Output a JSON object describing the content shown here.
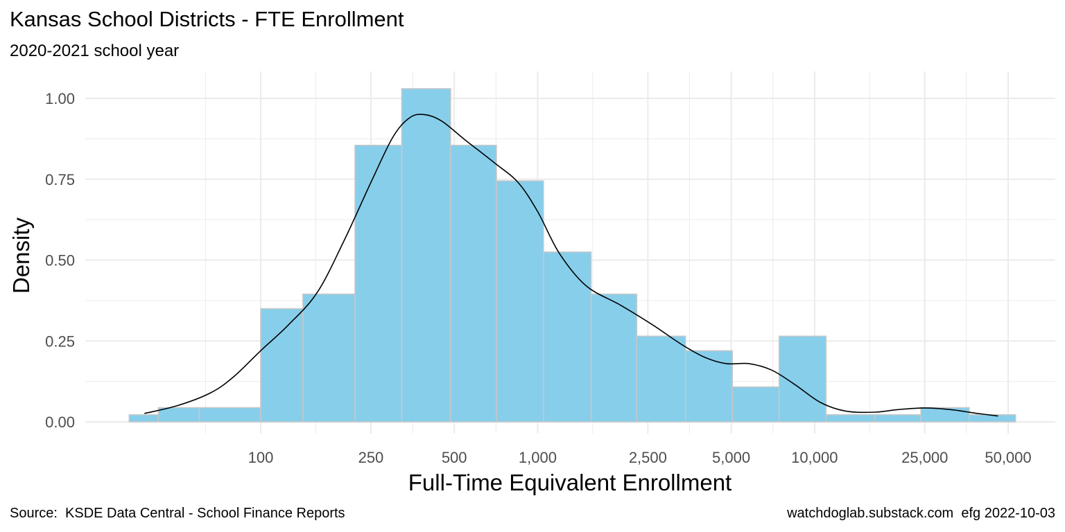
{
  "chart_data": {
    "type": "bar",
    "title": "Kansas School Districts - FTE Enrollment",
    "subtitle": "2020-2021 school year",
    "xlabel": "Full-Time Equivalent Enrollment",
    "ylabel": "Density",
    "x_scale": "log10",
    "xlim": [
      22,
      58000
    ],
    "ylim": [
      0,
      1.06
    ],
    "grid": true,
    "x_ticks": [
      {
        "value": 100,
        "label": "100"
      },
      {
        "value": 250,
        "label": "250"
      },
      {
        "value": 500,
        "label": "500"
      },
      {
        "value": 1000,
        "label": "1,000"
      },
      {
        "value": 2500,
        "label": "2,500"
      },
      {
        "value": 5000,
        "label": "5,000"
      },
      {
        "value": 10000,
        "label": "10,000"
      },
      {
        "value": 25000,
        "label": "25,000"
      },
      {
        "value": 50000,
        "label": "50,000"
      }
    ],
    "y_ticks": [
      {
        "value": 0,
        "label": "0.00"
      },
      {
        "value": 0.25,
        "label": "0.25"
      },
      {
        "value": 0.5,
        "label": "0.50"
      },
      {
        "value": 0.75,
        "label": "0.75"
      },
      {
        "value": 1.0,
        "label": "1.00"
      }
    ],
    "histogram_bins": [
      {
        "x0": 33.5,
        "x1": 42.7,
        "density": 0.022
      },
      {
        "x0": 42.7,
        "x1": 60.0,
        "density": 0.044
      },
      {
        "x0": 60.0,
        "x1": 100,
        "density": 0.044
      },
      {
        "x0": 100,
        "x1": 142,
        "density": 0.35
      },
      {
        "x0": 142,
        "x1": 219,
        "density": 0.395
      },
      {
        "x0": 219,
        "x1": 323,
        "density": 0.855
      },
      {
        "x0": 323,
        "x1": 485,
        "density": 1.03
      },
      {
        "x0": 485,
        "x1": 710,
        "density": 0.855
      },
      {
        "x0": 710,
        "x1": 1050,
        "density": 0.745
      },
      {
        "x0": 1050,
        "x1": 1560,
        "density": 0.525
      },
      {
        "x0": 1560,
        "x1": 2280,
        "density": 0.395
      },
      {
        "x0": 2280,
        "x1": 3420,
        "density": 0.265
      },
      {
        "x0": 3420,
        "x1": 5050,
        "density": 0.22
      },
      {
        "x0": 5050,
        "x1": 7450,
        "density": 0.108
      },
      {
        "x0": 7450,
        "x1": 11000,
        "density": 0.265
      },
      {
        "x0": 11000,
        "x1": 16500,
        "density": 0.022
      },
      {
        "x0": 16500,
        "x1": 24200,
        "density": 0.022
      },
      {
        "x0": 24200,
        "x1": 36200,
        "density": 0.044
      },
      {
        "x0": 36200,
        "x1": 53200,
        "density": 0.022
      }
    ],
    "density_curve": [
      {
        "x": 38,
        "y": 0.026
      },
      {
        "x": 50,
        "y": 0.05
      },
      {
        "x": 66,
        "y": 0.09
      },
      {
        "x": 80,
        "y": 0.14
      },
      {
        "x": 100,
        "y": 0.22
      },
      {
        "x": 126,
        "y": 0.3
      },
      {
        "x": 160,
        "y": 0.4
      },
      {
        "x": 200,
        "y": 0.56
      },
      {
        "x": 250,
        "y": 0.74
      },
      {
        "x": 300,
        "y": 0.88
      },
      {
        "x": 345,
        "y": 0.94
      },
      {
        "x": 390,
        "y": 0.95
      },
      {
        "x": 450,
        "y": 0.93
      },
      {
        "x": 550,
        "y": 0.87
      },
      {
        "x": 700,
        "y": 0.8
      },
      {
        "x": 850,
        "y": 0.74
      },
      {
        "x": 1000,
        "y": 0.65
      },
      {
        "x": 1200,
        "y": 0.52
      },
      {
        "x": 1500,
        "y": 0.42
      },
      {
        "x": 2000,
        "y": 0.36
      },
      {
        "x": 2600,
        "y": 0.3
      },
      {
        "x": 3300,
        "y": 0.24
      },
      {
        "x": 4000,
        "y": 0.2
      },
      {
        "x": 4800,
        "y": 0.18
      },
      {
        "x": 5800,
        "y": 0.18
      },
      {
        "x": 7000,
        "y": 0.16
      },
      {
        "x": 8500,
        "y": 0.115
      },
      {
        "x": 10500,
        "y": 0.06
      },
      {
        "x": 13000,
        "y": 0.033
      },
      {
        "x": 16500,
        "y": 0.03
      },
      {
        "x": 20000,
        "y": 0.038
      },
      {
        "x": 25000,
        "y": 0.043
      },
      {
        "x": 31000,
        "y": 0.038
      },
      {
        "x": 38000,
        "y": 0.027
      },
      {
        "x": 46000,
        "y": 0.018
      }
    ],
    "bar_fill": "#87CEEB",
    "bar_stroke": "#c8c8c8",
    "curve_color": "#000000",
    "grid_color": "#ebebeb"
  },
  "caption": {
    "source": "Source:  KSDE Data Central - School Finance Reports",
    "credit": "watchdoglab.substack.com  efg 2022-10-03"
  }
}
